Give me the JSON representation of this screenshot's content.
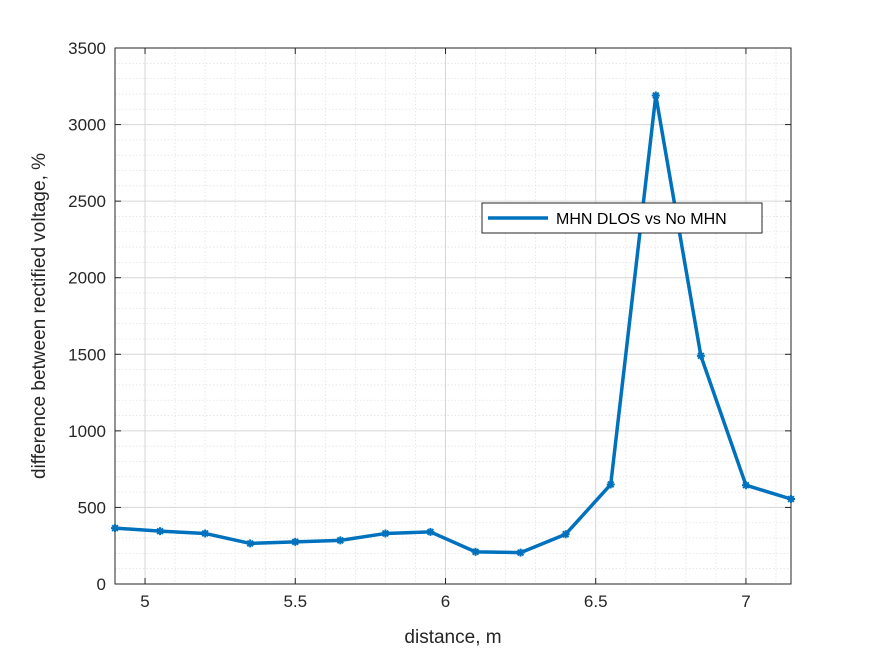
{
  "chart_data": {
    "type": "line",
    "xlabel": "distance, m",
    "ylabel": "difference between rectified voltage, %",
    "xlim": [
      4.9,
      7.15
    ],
    "ylim": [
      0,
      3500
    ],
    "x_ticks": [
      5,
      5.5,
      6,
      6.5,
      7
    ],
    "x_tick_labels": [
      "5",
      "5.5",
      "6",
      "6.5",
      "7"
    ],
    "y_ticks": [
      0,
      500,
      1000,
      1500,
      2000,
      2500,
      3000,
      3500
    ],
    "y_tick_labels": [
      "0",
      "500",
      "1000",
      "1500",
      "2000",
      "2500",
      "3000",
      "3500"
    ],
    "grid": true,
    "minor_grid": true,
    "legend_position": "right",
    "series": [
      {
        "name": "MHN DLOS vs No MHN",
        "color": "#0072BD",
        "marker": "*",
        "x": [
          4.9,
          5.05,
          5.2,
          5.35,
          5.5,
          5.65,
          5.8,
          5.95,
          6.1,
          6.25,
          6.4,
          6.55,
          6.7,
          6.85,
          7.0,
          7.15
        ],
        "y": [
          365,
          345,
          330,
          265,
          275,
          285,
          330,
          340,
          210,
          205,
          325,
          650,
          3190,
          1490,
          645,
          555
        ]
      }
    ]
  }
}
